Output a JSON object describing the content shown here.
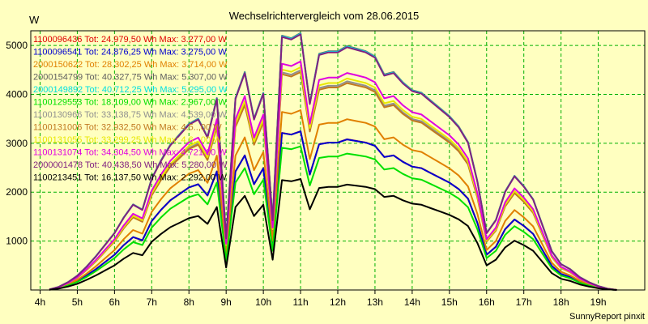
{
  "chart_data": {
    "type": "line",
    "title": "Wechselrichtervergleich vom 28.06.2015",
    "ylabel": "W",
    "xlabel": "",
    "footer": "SunnyReport pinxit",
    "ylim": [
      0,
      5300
    ],
    "xlim": [
      3.75,
      20.25
    ],
    "yticks": [
      1000,
      2000,
      3000,
      4000,
      5000
    ],
    "xticks": [
      {
        "v": 4,
        "label": "4h"
      },
      {
        "v": 5,
        "label": "5h"
      },
      {
        "v": 6,
        "label": "6h"
      },
      {
        "v": 7,
        "label": "7h"
      },
      {
        "v": 8,
        "label": "8h"
      },
      {
        "v": 9,
        "label": "9h"
      },
      {
        "v": 10,
        "label": "10h"
      },
      {
        "v": 11,
        "label": "11h"
      },
      {
        "v": 12,
        "label": "12h"
      },
      {
        "v": 13,
        "label": "13h"
      },
      {
        "v": 14,
        "label": "14h"
      },
      {
        "v": 15,
        "label": "15h"
      },
      {
        "v": 16,
        "label": "16h"
      },
      {
        "v": 17,
        "label": "17h"
      },
      {
        "v": 18,
        "label": "18h"
      },
      {
        "v": 19,
        "label": "19h"
      }
    ],
    "grid": true,
    "legend_position": "top-left",
    "x": [
      4.25,
      4.5,
      4.75,
      5,
      5.25,
      5.5,
      5.75,
      6,
      6.25,
      6.5,
      6.75,
      7,
      7.25,
      7.5,
      7.75,
      8,
      8.25,
      8.5,
      8.75,
      9,
      9.25,
      9.5,
      9.75,
      10,
      10.25,
      10.5,
      10.75,
      11,
      11.25,
      11.5,
      11.75,
      12,
      12.25,
      12.5,
      12.75,
      13,
      13.25,
      13.5,
      13.75,
      14,
      14.25,
      14.5,
      14.75,
      15,
      15.25,
      15.5,
      15.75,
      16,
      16.25,
      16.5,
      16.75,
      17,
      17.25,
      17.5,
      17.75,
      18,
      18.25,
      18.5,
      18.75,
      19,
      19.25,
      19.5
    ],
    "shape": [
      0.002,
      0.012,
      0.03,
      0.055,
      0.09,
      0.13,
      0.175,
      0.22,
      0.28,
      0.33,
      0.31,
      0.43,
      0.5,
      0.56,
      0.6,
      0.64,
      0.66,
      0.59,
      0.74,
      0.2,
      0.74,
      0.84,
      0.66,
      0.76,
      0.27,
      0.98,
      0.97,
      0.99,
      0.72,
      0.91,
      0.92,
      0.92,
      0.94,
      0.93,
      0.92,
      0.9,
      0.83,
      0.84,
      0.8,
      0.77,
      0.76,
      0.73,
      0.7,
      0.67,
      0.63,
      0.57,
      0.42,
      0.22,
      0.27,
      0.38,
      0.44,
      0.4,
      0.35,
      0.25,
      0.15,
      0.1,
      0.08,
      0.05,
      0.03,
      0.015,
      0.005,
      0.0
    ],
    "series": [
      {
        "name": "1100096436",
        "legend": "1100096436 Tot: 24.979,50 Wh Max: 3.277,00 W",
        "color": "#e00000",
        "max": 3277
      },
      {
        "name": "1100096541",
        "legend": "1100096541 Tot: 24.876,25 Wh Max: 3.275,00 W",
        "color": "#0000d0",
        "max": 3275
      },
      {
        "name": "2000150622",
        "legend": "2000150622 Tot: 28.302,25 Wh Max: 3.714,00 W",
        "color": "#e08000",
        "max": 3714
      },
      {
        "name": "2000154799",
        "legend": "2000154799 Tot: 40.327,75 Wh Max: 5.307,00 W",
        "color": "#606060",
        "max": 5307
      },
      {
        "name": "2000149892",
        "legend": "2000149892 Tot: 40.712,25 Wh Max: 5.295,00 W",
        "color": "#00e0e0",
        "max": 5295
      },
      {
        "name": "1100129553",
        "legend": "1100129553 Tot: 18.109,00 Wh Max: 2.967,00 W",
        "color": "#00e000",
        "max": 2967
      },
      {
        "name": "1100130966",
        "legend": "1100130966 Tot: 33.138,75 Wh Max: 4.539,00 W",
        "color": "#909090",
        "max": 4539
      },
      {
        "name": "1100131006",
        "legend": "1100131006 Tot: 32.932,50 Wh Max: 4.5..,00 W",
        "color": "#c07820",
        "max": 4500
      },
      {
        "name": "1100131055",
        "legend": "1100131055 Tot: 33.299,25 Wh Max: 4.6..,00 W",
        "color": "#e8e800",
        "max": 4600
      },
      {
        "name": "1100131074",
        "legend": "1100131074 Tot: 34.304,50 Wh Max: 4.721,00 W",
        "color": "#e000e0",
        "max": 4721
      },
      {
        "name": "2000001478",
        "legend": "2000001478 Tot: 40.438,50 Wh Max: 5.280,00 W",
        "color": "#802080",
        "max": 5280
      },
      {
        "name": "1100213451",
        "legend": "1100213451 Tot: 16.137,50 Wh Max: 2.292,00 W",
        "color": "#000000",
        "max": 2292
      }
    ]
  }
}
